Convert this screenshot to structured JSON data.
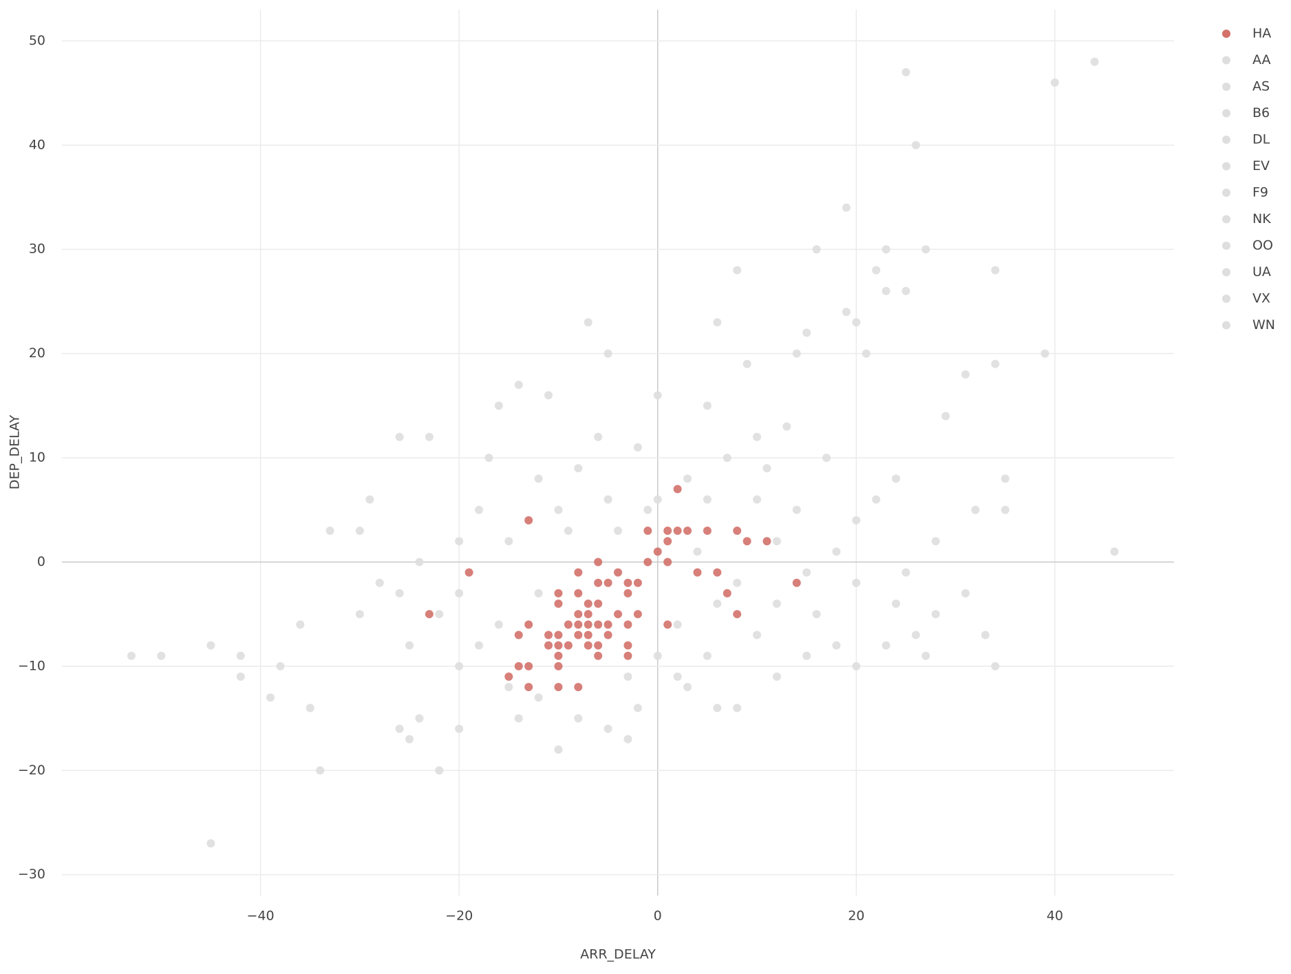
{
  "chart_data": {
    "type": "scatter",
    "x_label": "ARR_DELAY",
    "y_label": "DEP_DELAY",
    "xlim": [
      -60,
      52
    ],
    "ylim": [
      -32,
      53
    ],
    "xticks": [
      {
        "value": -40,
        "label": "−40"
      },
      {
        "value": -20,
        "label": "−20"
      },
      0,
      20,
      40
    ],
    "yticks": [
      {
        "value": -30,
        "label": "−30"
      },
      {
        "value": -20,
        "label": "−20"
      },
      {
        "value": -10,
        "label": "−10"
      },
      0,
      10,
      20,
      30,
      40,
      50
    ],
    "grid": true,
    "legend": "right",
    "series": [
      {
        "name": "HA",
        "color": "#d3716a",
        "x": [
          2,
          -13,
          -1,
          1,
          2,
          3,
          5,
          8,
          1,
          9,
          11,
          0,
          -1,
          1,
          -19,
          -6,
          -4,
          4,
          6,
          -8,
          -5,
          -3,
          -2,
          -6,
          14,
          -10,
          -8,
          -3,
          7,
          -10,
          -7,
          -6,
          -23,
          -8,
          -7,
          -4,
          -2,
          8,
          -13,
          -9,
          -8,
          -7,
          -6,
          -5,
          -3,
          1,
          -11,
          -10,
          -8,
          -7,
          -14,
          -5,
          -11,
          -10,
          -9,
          -7,
          -6,
          -3,
          -10,
          -6,
          -3,
          -14,
          -13,
          -10,
          -15,
          -13,
          -10,
          -8
        ],
        "values": [
          7,
          4,
          3,
          3,
          3,
          3,
          3,
          3,
          2,
          2,
          2,
          1,
          0,
          0,
          -1,
          0,
          -1,
          -1,
          -1,
          -1,
          -2,
          -2,
          -2,
          -2,
          -2,
          -3,
          -3,
          -3,
          -3,
          -4,
          -4,
          -4,
          -5,
          -5,
          -5,
          -5,
          -5,
          -5,
          -6,
          -6,
          -6,
          -6,
          -6,
          -6,
          -6,
          -6,
          -7,
          -7,
          -7,
          -7,
          -7,
          -7,
          -8,
          -8,
          -8,
          -8,
          -8,
          -8,
          -9,
          -9,
          -9,
          -10,
          -10,
          -10,
          -11,
          -12,
          -12,
          -12
        ]
      },
      {
        "name": "AA",
        "color": "#dedede",
        "x": [
          -53,
          -50,
          -45,
          -45,
          -42,
          -42,
          -39,
          -34,
          -22,
          -10,
          44,
          25
        ],
        "values": [
          -9,
          -9,
          -8,
          -27,
          -11,
          -9,
          -13,
          -20,
          -20,
          -18,
          48,
          47
        ]
      },
      {
        "name": "AS",
        "color": "#dedede",
        "x": [
          40,
          26,
          19,
          16,
          23,
          27,
          8,
          22,
          34,
          23,
          25,
          19
        ],
        "values": [
          46,
          40,
          34,
          30,
          30,
          30,
          28,
          28,
          28,
          26,
          26,
          24
        ]
      },
      {
        "name": "B6",
        "color": "#dedede",
        "x": [
          -7,
          6,
          20,
          15,
          39,
          -5,
          14,
          21,
          34,
          31,
          29,
          46
        ],
        "values": [
          23,
          23,
          23,
          22,
          20,
          20,
          20,
          20,
          19,
          18,
          14,
          1
        ]
      },
      {
        "name": "DL",
        "color": "#dedede",
        "x": [
          35,
          35,
          32,
          31,
          33,
          34,
          27,
          20,
          -3,
          -25,
          -26,
          -20
        ],
        "values": [
          8,
          5,
          5,
          -3,
          -7,
          -10,
          -9,
          -10,
          -17,
          -17,
          -16,
          -16
        ]
      },
      {
        "name": "EV",
        "color": "#dedede",
        "x": [
          -14,
          -33,
          -29,
          -26,
          -23,
          -14,
          -16,
          -11,
          0,
          9,
          -17,
          -30
        ],
        "values": [
          -15,
          3,
          6,
          12,
          12,
          17,
          15,
          16,
          16,
          19,
          10,
          3
        ]
      },
      {
        "name": "F9",
        "color": "#dedede",
        "x": [
          -36,
          -38,
          -35,
          -24,
          -5,
          3,
          6,
          8,
          12,
          15,
          18,
          23
        ],
        "values": [
          -6,
          -10,
          -14,
          -15,
          -16,
          -12,
          -14,
          -14,
          -11,
          -9,
          -8,
          -8
        ]
      },
      {
        "name": "NK",
        "color": "#dedede",
        "x": [
          26,
          28,
          25,
          28,
          24,
          17,
          13,
          10,
          5,
          -2,
          -6,
          -12
        ],
        "values": [
          -7,
          -5,
          -1,
          2,
          8,
          10,
          13,
          12,
          15,
          11,
          12,
          8
        ]
      },
      {
        "name": "OO",
        "color": "#dedede",
        "x": [
          -18,
          -20,
          -24,
          -28,
          -30,
          -25,
          -20,
          -15,
          -12,
          -8,
          -2,
          2
        ],
        "values": [
          5,
          2,
          0,
          -2,
          -5,
          -8,
          -10,
          -12,
          -13,
          -15,
          -14,
          -11
        ]
      },
      {
        "name": "UA",
        "color": "#dedede",
        "x": [
          5,
          10,
          12,
          15,
          18,
          20,
          22,
          10,
          5,
          0,
          -5,
          -10
        ],
        "values": [
          -9,
          -7,
          -4,
          -1,
          1,
          4,
          6,
          6,
          6,
          6,
          6,
          5
        ]
      },
      {
        "name": "VX",
        "color": "#dedede",
        "x": [
          -15,
          -20,
          -16,
          -12,
          -4,
          4,
          8,
          12,
          3,
          -8,
          -3,
          0
        ],
        "values": [
          2,
          -3,
          -6,
          -3,
          3,
          1,
          -2,
          2,
          8,
          9,
          -11,
          -9
        ]
      },
      {
        "name": "WN",
        "color": "#dedede",
        "x": [
          2,
          6,
          -1,
          -18,
          -22,
          -26,
          16,
          20,
          24,
          14,
          7,
          11,
          -9
        ],
        "values": [
          -6,
          -4,
          5,
          -8,
          -5,
          -3,
          -5,
          -2,
          -4,
          5,
          10,
          9,
          3
        ]
      }
    ]
  }
}
